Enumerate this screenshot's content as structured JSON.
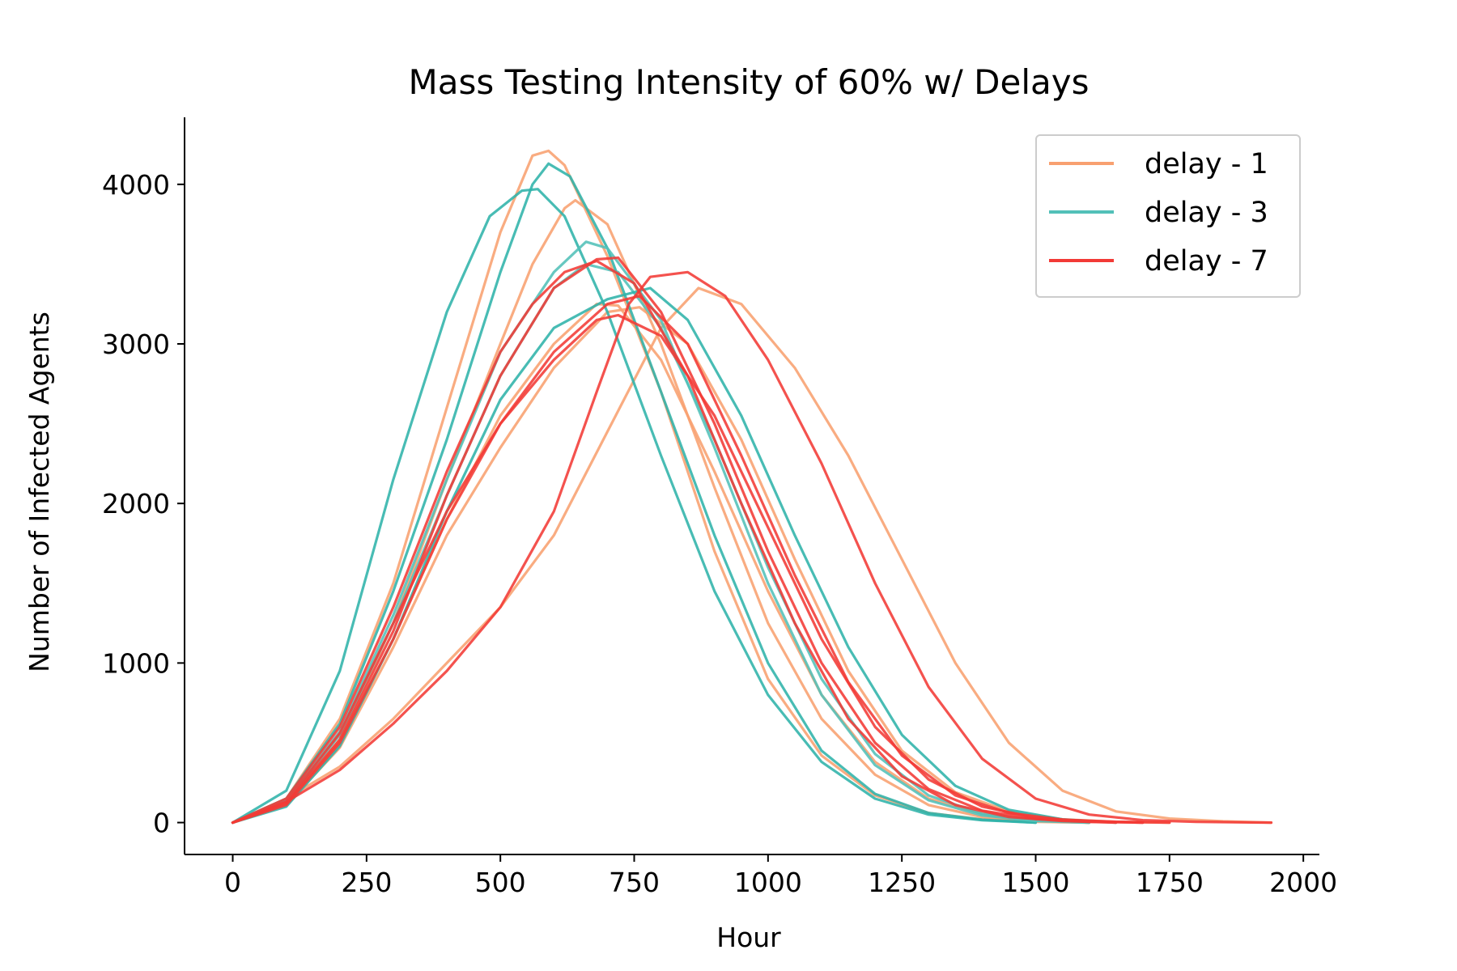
{
  "chart_data": {
    "type": "line",
    "title": "Mass Testing Intensity of 60% w/ Delays",
    "xlabel": "Hour",
    "ylabel": "Number of Infected Agents",
    "xlim": [
      -90,
      2030
    ],
    "ylim": [
      -200,
      4420
    ],
    "xticks": [
      0,
      250,
      500,
      750,
      1000,
      1250,
      1500,
      1750,
      2000
    ],
    "yticks": [
      0,
      1000,
      2000,
      3000,
      4000
    ],
    "grid": false,
    "legend_position": "top-right",
    "legend": [
      {
        "label": "delay - 1",
        "color": "#f8a070"
      },
      {
        "label": "delay - 3",
        "color": "#52c0b8"
      },
      {
        "label": "delay - 7",
        "color": "#f23a36"
      }
    ],
    "series": [
      {
        "group": 0,
        "color": "#f8a070",
        "points": [
          [
            0,
            0
          ],
          [
            100,
            150
          ],
          [
            200,
            650
          ],
          [
            300,
            1500
          ],
          [
            400,
            2600
          ],
          [
            500,
            3700
          ],
          [
            560,
            4180
          ],
          [
            590,
            4210
          ],
          [
            620,
            4120
          ],
          [
            700,
            3550
          ],
          [
            800,
            2700
          ],
          [
            900,
            1700
          ],
          [
            1000,
            900
          ],
          [
            1100,
            420
          ],
          [
            1200,
            170
          ],
          [
            1300,
            60
          ],
          [
            1400,
            20
          ],
          [
            1500,
            5
          ],
          [
            1600,
            0
          ]
        ]
      },
      {
        "group": 0,
        "color": "#f8a070",
        "points": [
          [
            0,
            0
          ],
          [
            100,
            120
          ],
          [
            200,
            520
          ],
          [
            300,
            1250
          ],
          [
            400,
            2150
          ],
          [
            500,
            3000
          ],
          [
            560,
            3500
          ],
          [
            620,
            3850
          ],
          [
            640,
            3900
          ],
          [
            700,
            3750
          ],
          [
            800,
            3000
          ],
          [
            900,
            2100
          ],
          [
            1000,
            1250
          ],
          [
            1100,
            650
          ],
          [
            1200,
            300
          ],
          [
            1300,
            110
          ],
          [
            1400,
            35
          ],
          [
            1500,
            10
          ],
          [
            1600,
            0
          ]
        ]
      },
      {
        "group": 0,
        "color": "#f8a070",
        "points": [
          [
            0,
            0
          ],
          [
            100,
            130
          ],
          [
            200,
            500
          ],
          [
            300,
            1150
          ],
          [
            400,
            1900
          ],
          [
            500,
            2550
          ],
          [
            600,
            3000
          ],
          [
            680,
            3250
          ],
          [
            720,
            3240
          ],
          [
            800,
            2900
          ],
          [
            900,
            2200
          ],
          [
            1000,
            1450
          ],
          [
            1100,
            800
          ],
          [
            1200,
            380
          ],
          [
            1300,
            150
          ],
          [
            1400,
            55
          ],
          [
            1500,
            15
          ],
          [
            1600,
            0
          ]
        ]
      },
      {
        "group": 0,
        "color": "#f8a070",
        "points": [
          [
            0,
            0
          ],
          [
            100,
            150
          ],
          [
            200,
            350
          ],
          [
            300,
            650
          ],
          [
            400,
            1000
          ],
          [
            500,
            1350
          ],
          [
            600,
            1800
          ],
          [
            700,
            2450
          ],
          [
            800,
            3100
          ],
          [
            870,
            3350
          ],
          [
            950,
            3250
          ],
          [
            1050,
            2850
          ],
          [
            1150,
            2300
          ],
          [
            1250,
            1650
          ],
          [
            1350,
            1000
          ],
          [
            1450,
            500
          ],
          [
            1550,
            200
          ],
          [
            1650,
            70
          ],
          [
            1750,
            25
          ],
          [
            1850,
            8
          ],
          [
            1940,
            0
          ]
        ]
      },
      {
        "group": 0,
        "color": "#f8a070",
        "points": [
          [
            0,
            0
          ],
          [
            100,
            110
          ],
          [
            200,
            470
          ],
          [
            300,
            1100
          ],
          [
            400,
            1800
          ],
          [
            500,
            2350
          ],
          [
            600,
            2850
          ],
          [
            700,
            3200
          ],
          [
            760,
            3230
          ],
          [
            850,
            3000
          ],
          [
            950,
            2400
          ],
          [
            1050,
            1650
          ],
          [
            1150,
            950
          ],
          [
            1250,
            450
          ],
          [
            1350,
            190
          ],
          [
            1450,
            70
          ],
          [
            1550,
            20
          ],
          [
            1650,
            5
          ],
          [
            1750,
            0
          ]
        ]
      },
      {
        "group": 1,
        "color": "#2fb3aa",
        "points": [
          [
            0,
            0
          ],
          [
            100,
            200
          ],
          [
            200,
            950
          ],
          [
            300,
            2150
          ],
          [
            400,
            3200
          ],
          [
            480,
            3800
          ],
          [
            540,
            3960
          ],
          [
            570,
            3970
          ],
          [
            620,
            3800
          ],
          [
            700,
            3200
          ],
          [
            800,
            2300
          ],
          [
            900,
            1450
          ],
          [
            1000,
            800
          ],
          [
            1100,
            380
          ],
          [
            1200,
            150
          ],
          [
            1300,
            50
          ],
          [
            1400,
            15
          ],
          [
            1500,
            0
          ]
        ]
      },
      {
        "group": 1,
        "color": "#2fb3aa",
        "points": [
          [
            0,
            0
          ],
          [
            100,
            150
          ],
          [
            200,
            620
          ],
          [
            300,
            1450
          ],
          [
            400,
            2400
          ],
          [
            500,
            3450
          ],
          [
            560,
            4000
          ],
          [
            590,
            4130
          ],
          [
            630,
            4050
          ],
          [
            700,
            3600
          ],
          [
            800,
            2700
          ],
          [
            900,
            1800
          ],
          [
            1000,
            1000
          ],
          [
            1100,
            450
          ],
          [
            1200,
            180
          ],
          [
            1300,
            60
          ],
          [
            1400,
            18
          ],
          [
            1500,
            0
          ]
        ]
      },
      {
        "group": 1,
        "color": "#52c0b8",
        "points": [
          [
            0,
            0
          ],
          [
            100,
            130
          ],
          [
            200,
            550
          ],
          [
            300,
            1250
          ],
          [
            400,
            2050
          ],
          [
            500,
            2800
          ],
          [
            600,
            3350
          ],
          [
            660,
            3500
          ],
          [
            720,
            3450
          ],
          [
            800,
            3100
          ],
          [
            900,
            2400
          ],
          [
            1000,
            1600
          ],
          [
            1100,
            900
          ],
          [
            1200,
            430
          ],
          [
            1300,
            170
          ],
          [
            1400,
            55
          ],
          [
            1500,
            15
          ],
          [
            1600,
            0
          ]
        ]
      },
      {
        "group": 1,
        "color": "#52c0b8",
        "points": [
          [
            0,
            0
          ],
          [
            100,
            140
          ],
          [
            200,
            570
          ],
          [
            300,
            1300
          ],
          [
            400,
            2150
          ],
          [
            500,
            2950
          ],
          [
            600,
            3450
          ],
          [
            660,
            3640
          ],
          [
            700,
            3600
          ],
          [
            800,
            3150
          ],
          [
            900,
            2350
          ],
          [
            1000,
            1500
          ],
          [
            1100,
            800
          ],
          [
            1200,
            360
          ],
          [
            1300,
            140
          ],
          [
            1400,
            45
          ],
          [
            1500,
            10
          ],
          [
            1600,
            0
          ]
        ]
      },
      {
        "group": 1,
        "color": "#2fb3aa",
        "points": [
          [
            0,
            0
          ],
          [
            100,
            100
          ],
          [
            200,
            480
          ],
          [
            300,
            1150
          ],
          [
            400,
            1950
          ],
          [
            500,
            2650
          ],
          [
            600,
            3100
          ],
          [
            700,
            3280
          ],
          [
            780,
            3350
          ],
          [
            850,
            3150
          ],
          [
            950,
            2550
          ],
          [
            1050,
            1800
          ],
          [
            1150,
            1100
          ],
          [
            1250,
            550
          ],
          [
            1350,
            230
          ],
          [
            1450,
            80
          ],
          [
            1550,
            20
          ],
          [
            1650,
            0
          ]
        ]
      },
      {
        "group": 2,
        "color": "#f23a36",
        "points": [
          [
            0,
            0
          ],
          [
            100,
            120
          ],
          [
            200,
            520
          ],
          [
            300,
            1200
          ],
          [
            400,
            2050
          ],
          [
            500,
            2800
          ],
          [
            600,
            3350
          ],
          [
            680,
            3530
          ],
          [
            720,
            3540
          ],
          [
            800,
            3200
          ],
          [
            900,
            2500
          ],
          [
            1000,
            1700
          ],
          [
            1100,
            1000
          ],
          [
            1200,
            500
          ],
          [
            1300,
            210
          ],
          [
            1400,
            75
          ],
          [
            1500,
            22
          ],
          [
            1600,
            5
          ],
          [
            1700,
            0
          ]
        ]
      },
      {
        "group": 2,
        "color": "#f23a36",
        "points": [
          [
            0,
            0
          ],
          [
            100,
            130
          ],
          [
            200,
            560
          ],
          [
            300,
            1250
          ],
          [
            400,
            1950
          ],
          [
            500,
            2500
          ],
          [
            600,
            2900
          ],
          [
            680,
            3150
          ],
          [
            720,
            3180
          ],
          [
            800,
            3050
          ],
          [
            900,
            2550
          ],
          [
            1000,
            1850
          ],
          [
            1100,
            1150
          ],
          [
            1200,
            600
          ],
          [
            1300,
            270
          ],
          [
            1400,
            100
          ],
          [
            1500,
            30
          ],
          [
            1600,
            8
          ],
          [
            1700,
            0
          ]
        ]
      },
      {
        "group": 2,
        "color": "#f23a36",
        "points": [
          [
            0,
            0
          ],
          [
            100,
            150
          ],
          [
            200,
            600
          ],
          [
            300,
            1350
          ],
          [
            400,
            2200
          ],
          [
            500,
            2950
          ],
          [
            560,
            3250
          ],
          [
            620,
            3450
          ],
          [
            680,
            3520
          ],
          [
            750,
            3380
          ],
          [
            850,
            2800
          ],
          [
            950,
            2000
          ],
          [
            1050,
            1250
          ],
          [
            1150,
            650
          ],
          [
            1250,
            290
          ],
          [
            1350,
            110
          ],
          [
            1450,
            35
          ],
          [
            1550,
            10
          ],
          [
            1650,
            0
          ]
        ]
      },
      {
        "group": 2,
        "color": "#f23a36",
        "points": [
          [
            0,
            0
          ],
          [
            100,
            130
          ],
          [
            200,
            330
          ],
          [
            300,
            620
          ],
          [
            400,
            950
          ],
          [
            500,
            1350
          ],
          [
            600,
            1950
          ],
          [
            680,
            2700
          ],
          [
            740,
            3250
          ],
          [
            780,
            3420
          ],
          [
            850,
            3450
          ],
          [
            920,
            3300
          ],
          [
            1000,
            2900
          ],
          [
            1100,
            2250
          ],
          [
            1200,
            1500
          ],
          [
            1300,
            850
          ],
          [
            1400,
            400
          ],
          [
            1500,
            150
          ],
          [
            1600,
            50
          ],
          [
            1700,
            15
          ],
          [
            1800,
            5
          ],
          [
            1940,
            0
          ]
        ]
      },
      {
        "group": 2,
        "color": "#f23a36",
        "points": [
          [
            0,
            0
          ],
          [
            100,
            110
          ],
          [
            200,
            500
          ],
          [
            300,
            1150
          ],
          [
            400,
            1900
          ],
          [
            500,
            2500
          ],
          [
            600,
            2950
          ],
          [
            700,
            3250
          ],
          [
            760,
            3300
          ],
          [
            850,
            3000
          ],
          [
            950,
            2300
          ],
          [
            1050,
            1550
          ],
          [
            1150,
            880
          ],
          [
            1250,
            420
          ],
          [
            1350,
            170
          ],
          [
            1450,
            60
          ],
          [
            1550,
            18
          ],
          [
            1650,
            5
          ],
          [
            1750,
            0
          ]
        ]
      }
    ]
  }
}
